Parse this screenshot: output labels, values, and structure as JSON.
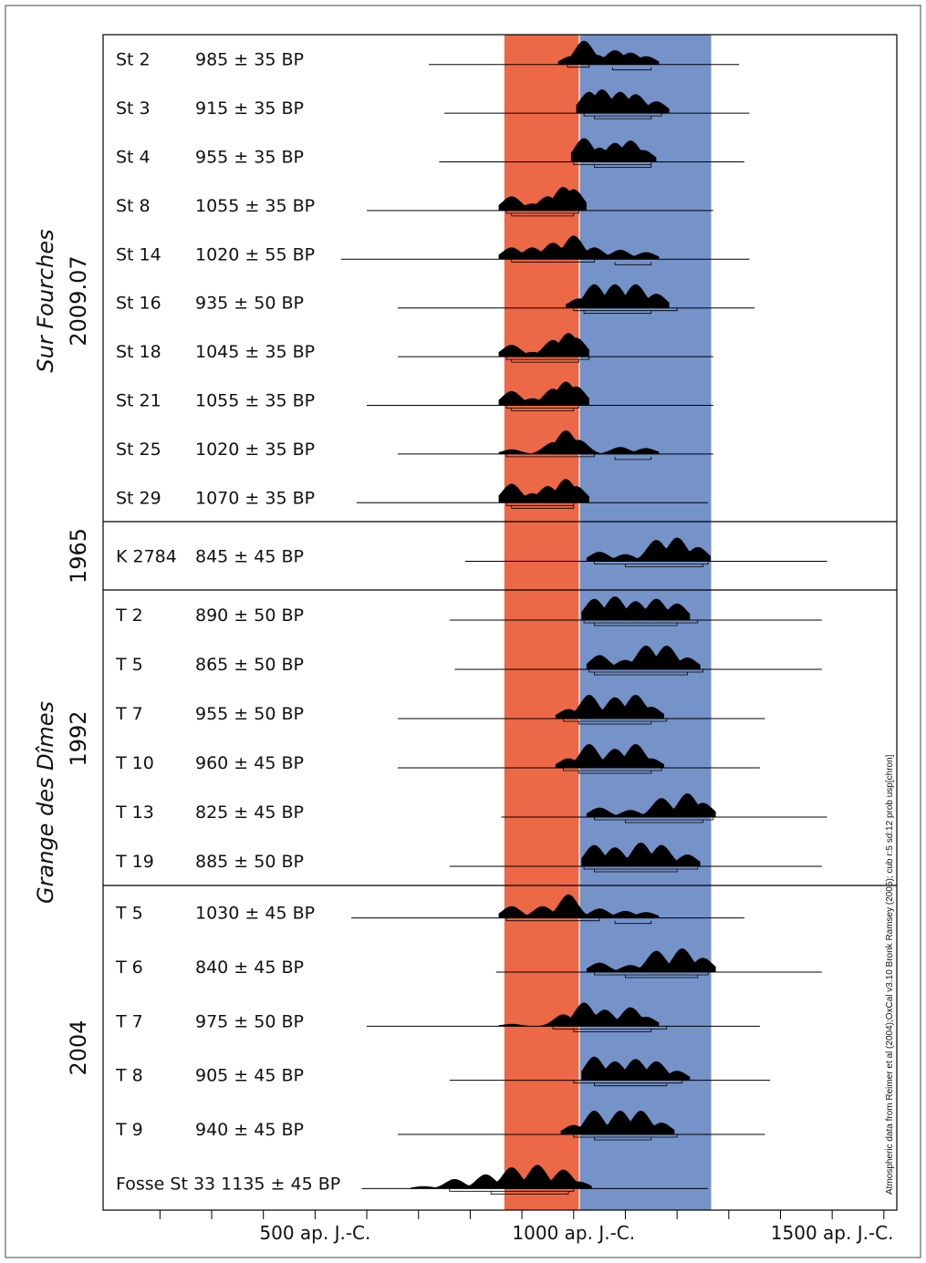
{
  "chart_data": {
    "type": "range-distribution",
    "x_ticks": [
      "500 ap. J.-C.",
      "1000 ap. J.-C.",
      "1500 ap. J.-C."
    ],
    "x_tick_values": [
      500,
      1000,
      1500
    ],
    "x_minor_ticks": [
      200,
      300,
      400,
      500,
      600,
      700,
      800,
      900,
      1000,
      1100,
      1200,
      1300,
      1400,
      1500,
      1600
    ],
    "xlim": [
      90,
      1625
    ],
    "highlight_bands": [
      {
        "from": 866,
        "to": 1010,
        "color": "#ec6846"
      },
      {
        "from": 1012,
        "to": 1266,
        "color": "#7592c9"
      }
    ],
    "note": "Atmospheric data from Reimer et al (2004);OxCal v3.10 Bronk Ramsey (2005); cub r:5 sd:12 prob usp[chron]",
    "groups": [
      {
        "site": "Sur Fourches",
        "year": "2009.07",
        "italic_label": "Sur Fourches",
        "samples": [
          0,
          1,
          2,
          3,
          4,
          5,
          6,
          7,
          8,
          9
        ]
      },
      {
        "site": "",
        "year": "1965",
        "samples": [
          10
        ]
      },
      {
        "site": "Grange des Dîmes",
        "year": "1992",
        "italic_label": "Grange des Dîmes",
        "samples": [
          11,
          12,
          13,
          14,
          15,
          16
        ]
      },
      {
        "site": "",
        "year": "2004",
        "samples": [
          17,
          18,
          19,
          20,
          21,
          22
        ]
      }
    ],
    "samples": [
      {
        "id": "St 2",
        "date": "985 ± 35 BP",
        "range": [
          720,
          1320
        ],
        "peaks": [
          [
            995,
            0.35
          ],
          [
            1020,
            1.0
          ],
          [
            1045,
            0.4
          ],
          [
            1080,
            0.6
          ],
          [
            1110,
            0.5
          ],
          [
            1140,
            0.35
          ]
        ],
        "brackets": [
          [
            988,
            1030
          ],
          [
            1075,
            1150
          ]
        ]
      },
      {
        "id": "St 3",
        "date": "915 ± 35 BP",
        "range": [
          750,
          1340
        ],
        "peaks": [
          [
            1030,
            0.9
          ],
          [
            1055,
            1.0
          ],
          [
            1090,
            0.9
          ],
          [
            1120,
            0.8
          ],
          [
            1160,
            0.5
          ]
        ],
        "brackets": [
          [
            1020,
            1170
          ],
          [
            1040,
            1150
          ]
        ]
      },
      {
        "id": "St 4",
        "date": "955 ± 35 BP",
        "range": [
          740,
          1330
        ],
        "peaks": [
          [
            1020,
            1.0
          ],
          [
            1050,
            0.6
          ],
          [
            1080,
            0.8
          ],
          [
            1110,
            0.9
          ],
          [
            1135,
            0.5
          ]
        ],
        "brackets": [
          [
            1000,
            1150
          ],
          [
            1040,
            1150
          ]
        ]
      },
      {
        "id": "St 8",
        "date": "1055 ± 35 BP",
        "range": [
          600,
          1270
        ],
        "peaks": [
          [
            880,
            0.6
          ],
          [
            920,
            0.3
          ],
          [
            950,
            0.6
          ],
          [
            980,
            1.0
          ],
          [
            1000,
            0.9
          ]
        ],
        "brackets": [
          [
            870,
            1010
          ],
          [
            880,
            1000
          ]
        ]
      },
      {
        "id": "St 14",
        "date": "1020 ± 55 BP",
        "range": [
          550,
          1340
        ],
        "peaks": [
          [
            880,
            0.5
          ],
          [
            920,
            0.5
          ],
          [
            960,
            0.7
          ],
          [
            1000,
            1.0
          ],
          [
            1040,
            0.5
          ],
          [
            1090,
            0.4
          ],
          [
            1140,
            0.3
          ]
        ],
        "brackets": [
          [
            880,
            1040
          ],
          [
            1080,
            1150
          ]
        ]
      },
      {
        "id": "St 16",
        "date": "935 ± 50 BP",
        "range": [
          660,
          1350
        ],
        "peaks": [
          [
            1010,
            0.4
          ],
          [
            1040,
            1.0
          ],
          [
            1080,
            1.0
          ],
          [
            1120,
            1.0
          ],
          [
            1160,
            0.6
          ]
        ],
        "brackets": [
          [
            1000,
            1200
          ],
          [
            1020,
            1150
          ]
        ]
      },
      {
        "id": "St 18",
        "date": "1045 ± 35 BP",
        "range": [
          660,
          1270
        ],
        "peaks": [
          [
            880,
            0.5
          ],
          [
            920,
            0.2
          ],
          [
            960,
            0.7
          ],
          [
            990,
            1.0
          ],
          [
            1005,
            0.8
          ]
        ],
        "brackets": [
          [
            870,
            1030
          ],
          [
            880,
            1010
          ]
        ]
      },
      {
        "id": "St 21",
        "date": "1055 ± 35 BP",
        "range": [
          600,
          1270
        ],
        "peaks": [
          [
            880,
            0.6
          ],
          [
            920,
            0.3
          ],
          [
            960,
            0.7
          ],
          [
            985,
            1.0
          ],
          [
            1005,
            0.8
          ]
        ],
        "brackets": [
          [
            870,
            1010
          ],
          [
            880,
            1000
          ]
        ]
      },
      {
        "id": "St 25",
        "date": "1020 ± 35 BP",
        "range": [
          660,
          1270
        ],
        "peaks": [
          [
            880,
            0.2
          ],
          [
            960,
            0.5
          ],
          [
            985,
            1.0
          ],
          [
            1010,
            0.6
          ],
          [
            1090,
            0.3
          ],
          [
            1140,
            0.25
          ]
        ],
        "brackets": [
          [
            870,
            1040
          ],
          [
            1080,
            1150
          ]
        ]
      },
      {
        "id": "St 29",
        "date": "1070 ± 35  BP",
        "range": [
          580,
          1260
        ],
        "peaks": [
          [
            880,
            0.8
          ],
          [
            920,
            0.4
          ],
          [
            950,
            0.7
          ],
          [
            985,
            1.0
          ],
          [
            1005,
            0.7
          ]
        ],
        "brackets": [
          [
            870,
            1000
          ],
          [
            880,
            1000
          ]
        ]
      },
      {
        "id": "K 2784",
        "date": "845 ± 45 BP",
        "range": [
          790,
          1490
        ],
        "peaks": [
          [
            1050,
            0.4
          ],
          [
            1100,
            0.3
          ],
          [
            1160,
            0.9
          ],
          [
            1200,
            1.0
          ],
          [
            1240,
            0.6
          ]
        ],
        "brackets": [
          [
            1040,
            1260
          ],
          [
            1100,
            1250
          ]
        ]
      },
      {
        "id": "T 2",
        "date": "890 ± 50 BP",
        "range": [
          760,
          1480
        ],
        "peaks": [
          [
            1040,
            0.9
          ],
          [
            1080,
            1.0
          ],
          [
            1120,
            0.8
          ],
          [
            1160,
            0.9
          ],
          [
            1200,
            0.7
          ]
        ],
        "brackets": [
          [
            1020,
            1240
          ],
          [
            1040,
            1200
          ]
        ]
      },
      {
        "id": "T 5",
        "date": "865 ± 50 BP",
        "range": [
          770,
          1480
        ],
        "peaks": [
          [
            1050,
            0.6
          ],
          [
            1100,
            0.4
          ],
          [
            1140,
            1.0
          ],
          [
            1180,
            1.0
          ],
          [
            1220,
            0.5
          ]
        ],
        "brackets": [
          [
            1030,
            1250
          ],
          [
            1040,
            1220
          ]
        ]
      },
      {
        "id": "T 7",
        "date": "955 ± 50 BP",
        "range": [
          660,
          1370
        ],
        "peaks": [
          [
            990,
            0.4
          ],
          [
            1030,
            1.0
          ],
          [
            1080,
            0.9
          ],
          [
            1120,
            1.0
          ],
          [
            1150,
            0.5
          ]
        ],
        "brackets": [
          [
            980,
            1180
          ],
          [
            1010,
            1150
          ]
        ]
      },
      {
        "id": "T 10",
        "date": "960 ± 45 BP",
        "range": [
          660,
          1360
        ],
        "peaks": [
          [
            990,
            0.4
          ],
          [
            1030,
            1.0
          ],
          [
            1080,
            0.8
          ],
          [
            1120,
            1.0
          ],
          [
            1150,
            0.4
          ]
        ],
        "brackets": [
          [
            980,
            1170
          ],
          [
            1010,
            1150
          ]
        ]
      },
      {
        "id": "T 13",
        "date": "825 ± 45 BP",
        "range": [
          860,
          1490
        ],
        "peaks": [
          [
            1050,
            0.4
          ],
          [
            1110,
            0.3
          ],
          [
            1170,
            0.8
          ],
          [
            1220,
            1.0
          ],
          [
            1250,
            0.6
          ]
        ],
        "brackets": [
          [
            1040,
            1270
          ],
          [
            1100,
            1250
          ]
        ]
      },
      {
        "id": "T 19",
        "date": "885 ± 50 BP",
        "range": [
          760,
          1480
        ],
        "peaks": [
          [
            1040,
            0.9
          ],
          [
            1080,
            0.8
          ],
          [
            1130,
            1.0
          ],
          [
            1170,
            0.9
          ],
          [
            1220,
            0.5
          ]
        ],
        "brackets": [
          [
            1020,
            1240
          ],
          [
            1040,
            1200
          ]
        ]
      },
      {
        "id": "T 5",
        "date": "1030 ± 45 BP",
        "range": [
          570,
          1330
        ],
        "peaks": [
          [
            880,
            0.5
          ],
          [
            940,
            0.5
          ],
          [
            990,
            1.0
          ],
          [
            1050,
            0.4
          ],
          [
            1100,
            0.3
          ],
          [
            1140,
            0.25
          ]
        ],
        "brackets": [
          [
            870,
            1050
          ],
          [
            1080,
            1150
          ]
        ]
      },
      {
        "id": "T 6",
        "date": "840 ± 45 BP",
        "range": [
          850,
          1480
        ],
        "peaks": [
          [
            1050,
            0.4
          ],
          [
            1110,
            0.3
          ],
          [
            1160,
            0.9
          ],
          [
            1210,
            1.0
          ],
          [
            1250,
            0.6
          ]
        ],
        "brackets": [
          [
            1040,
            1260
          ],
          [
            1100,
            1240
          ]
        ]
      },
      {
        "id": "T 7",
        "date": "975 ± 50 BP",
        "range": [
          600,
          1360
        ],
        "peaks": [
          [
            880,
            0.1
          ],
          [
            980,
            0.5
          ],
          [
            1020,
            1.0
          ],
          [
            1060,
            0.7
          ],
          [
            1110,
            0.8
          ],
          [
            1140,
            0.4
          ]
        ],
        "brackets": [
          [
            960,
            1180
          ],
          [
            1000,
            1150
          ]
        ]
      },
      {
        "id": "T 8",
        "date": "905 ± 45 BP",
        "range": [
          760,
          1380
        ],
        "peaks": [
          [
            1040,
            1.0
          ],
          [
            1080,
            0.8
          ],
          [
            1120,
            0.9
          ],
          [
            1160,
            0.8
          ],
          [
            1200,
            0.4
          ]
        ],
        "brackets": [
          [
            1000,
            1210
          ],
          [
            1040,
            1180
          ]
        ]
      },
      {
        "id": "T 9",
        "date": "940 ± 45 BP",
        "range": [
          660,
          1370
        ],
        "peaks": [
          [
            1000,
            0.4
          ],
          [
            1040,
            1.0
          ],
          [
            1090,
            1.0
          ],
          [
            1130,
            1.0
          ],
          [
            1170,
            0.5
          ]
        ],
        "brackets": [
          [
            1000,
            1200
          ],
          [
            1040,
            1150
          ]
        ]
      },
      {
        "id": "Fosse St 33",
        "date": "1135 ± 45 BP",
        "range": [
          590,
          1260
        ],
        "peaks": [
          [
            710,
            0.1
          ],
          [
            770,
            0.4
          ],
          [
            830,
            0.6
          ],
          [
            880,
            0.9
          ],
          [
            930,
            1.0
          ],
          [
            980,
            0.8
          ],
          [
            1010,
            0.3
          ]
        ],
        "brackets": [
          [
            760,
            1000
          ],
          [
            840,
            990
          ]
        ]
      }
    ]
  }
}
